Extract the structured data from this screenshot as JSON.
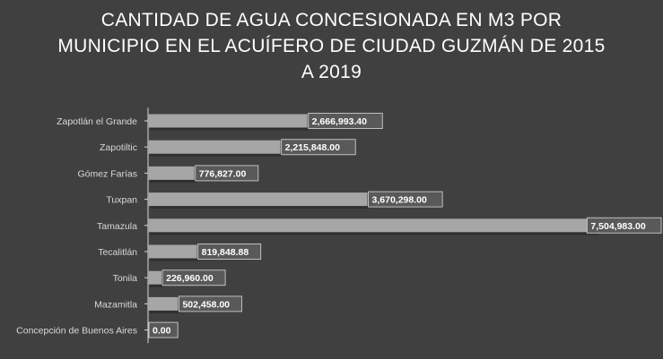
{
  "chart_data": {
    "type": "bar",
    "orientation": "horizontal",
    "title_lines": [
      "CANTIDAD DE AGUA CONCESIONADA EN M3 POR",
      "MUNICIPIO EN EL ACUÍFERO DE CIUDAD GUZMÁN DE 2015",
      "A 2019"
    ],
    "categories": [
      "Zapotlán el Grande",
      "Zapotiltic",
      "Gómez Farías",
      "Tuxpan",
      "Tamazula",
      "Tecalitlán",
      "Tonila",
      "Mazamitla",
      "Concepción de Buenos Aires"
    ],
    "values": [
      2666993.4,
      2215848.0,
      776827.0,
      3670298.0,
      7504983.0,
      819848.88,
      226960.0,
      502458.0,
      0.0
    ],
    "value_labels": [
      "2,666,993.40",
      "2,215,848.00",
      "776,827.00",
      "3,670,298.00",
      "7,504,983.00",
      "819,848.88",
      "226,960.00",
      "502,458.00",
      "0.00"
    ],
    "xlim": [
      0,
      7504983
    ],
    "grid": false,
    "legend": "none",
    "colors": {
      "background": "#404040",
      "bar_fill": "#a6a6a6",
      "bar_shadow": "#2b2b2b",
      "label_box_fill": "#595959",
      "label_box_border": "#bfbfbf",
      "axis": "#d9d9d9",
      "title": "#ffffff"
    }
  }
}
